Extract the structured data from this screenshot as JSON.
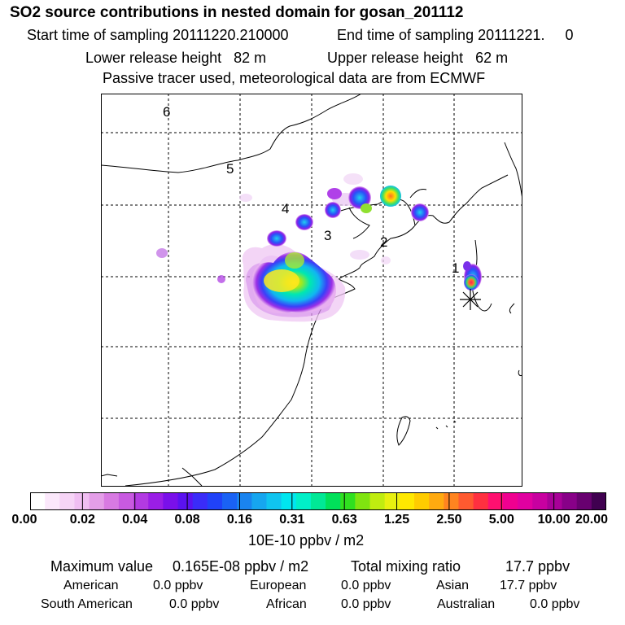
{
  "title": "SO2 source contributions in nested domain for gosan_201112",
  "sampling": {
    "start": "Start time of sampling 20111220.210000",
    "end": "End time of sampling 20111221.     0"
  },
  "release": {
    "lower": "Lower release height   82 m",
    "upper": "Upper release height   62 m"
  },
  "note": "Passive tracer used, meteorological data are from ECMWF",
  "map": {
    "markers": [
      "1",
      "2",
      "3",
      "4",
      "5",
      "6"
    ],
    "receptor_symbol": "asterisk-icon"
  },
  "colorbar": {
    "ticks": [
      "0.00",
      "0.02",
      "0.04",
      "0.08",
      "0.16",
      "0.31",
      "0.63",
      "1.25",
      "2.50",
      "5.00",
      "10.00",
      "20.00"
    ],
    "colors": [
      "#ffffff",
      "#fbe8fb",
      "#f6d4f6",
      "#f0bef2",
      "#e49ee8",
      "#d87ae2",
      "#c85ae0",
      "#b23ae2",
      "#9a1ee6",
      "#7a10ea",
      "#5a12f0",
      "#3a2cf8",
      "#2042f8",
      "#1a62f4",
      "#1a84f0",
      "#16a6f0",
      "#10c4f0",
      "#00e6f0",
      "#00f0c8",
      "#00e896",
      "#00e05a",
      "#30e020",
      "#80e410",
      "#c0ec10",
      "#e8f010",
      "#ffe800",
      "#ffcc00",
      "#ffaa10",
      "#ff8420",
      "#ff5a30",
      "#ff3040",
      "#ff1070",
      "#f00090",
      "#e000a0",
      "#c800a0",
      "#a80098",
      "#880088",
      "#680070",
      "#400050"
    ],
    "unit": "10E-10 ppbv / m2"
  },
  "summary": {
    "max_label": "Maximum value",
    "max_value": "0.165E-08 ppbv / m2",
    "total_label": "Total mixing ratio",
    "total_value": "17.7 ppbv"
  },
  "regions": [
    {
      "name": "American",
      "value": "0.0 ppbv"
    },
    {
      "name": "European",
      "value": "0.0 ppbv"
    },
    {
      "name": "Asian",
      "value": "17.7 ppbv"
    },
    {
      "name": "South American",
      "value": "0.0 ppbv"
    },
    {
      "name": "African",
      "value": "0.0 ppbv"
    },
    {
      "name": "Australian",
      "value": "0.0 ppbv"
    }
  ]
}
